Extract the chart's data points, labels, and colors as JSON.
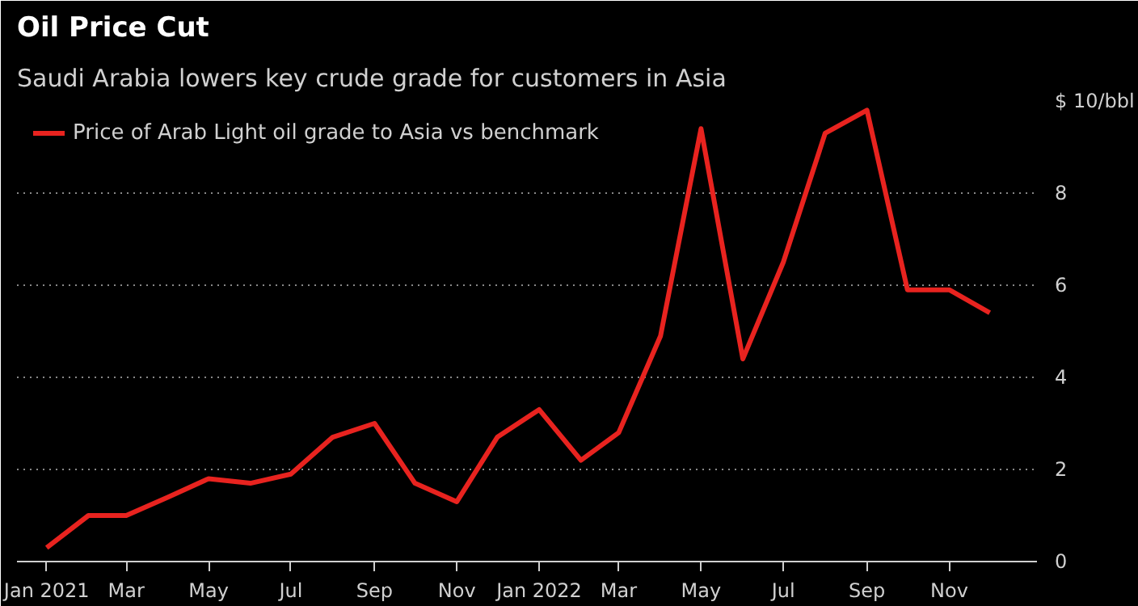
{
  "chart_data": {
    "type": "line",
    "title": "Oil Price Cut",
    "subtitle": "Saudi Arabia lowers key crude grade for customers in Asia",
    "x": [
      "2021-01",
      "2021-02",
      "2021-03",
      "2021-04",
      "2021-05",
      "2021-06",
      "2021-07",
      "2021-08",
      "2021-09",
      "2021-10",
      "2021-11",
      "2021-12",
      "2022-01",
      "2022-02",
      "2022-03",
      "2022-04",
      "2022-05",
      "2022-06",
      "2022-07",
      "2022-08",
      "2022-09",
      "2022-10",
      "2022-11",
      "2022-12"
    ],
    "series": [
      {
        "name": "Price of Arab Light oil grade to Asia vs benchmark",
        "color": "#e8231f",
        "values": [
          0.3,
          1.0,
          1.0,
          1.4,
          1.8,
          1.7,
          1.9,
          2.7,
          3.0,
          1.7,
          1.3,
          2.7,
          3.3,
          2.2,
          2.8,
          4.9,
          9.4,
          4.4,
          6.5,
          9.3,
          9.8,
          5.9,
          5.9,
          5.4
        ]
      }
    ],
    "ylim": [
      0,
      10
    ],
    "yticks": [
      0,
      2,
      4,
      6,
      8,
      {
        "value": 10,
        "label": "$ 10/bbl"
      }
    ],
    "xlim": [
      "2020-12-10",
      "2023-01-05"
    ],
    "xticks": [
      {
        "value": "2021-01",
        "label": "Jan\n2021"
      },
      {
        "value": "2021-03",
        "label": "Mar"
      },
      {
        "value": "2021-05",
        "label": "May"
      },
      {
        "value": "2021-07",
        "label": "Jul"
      },
      {
        "value": "2021-09",
        "label": "Sep"
      },
      {
        "value": "2021-11",
        "label": "Nov"
      },
      {
        "value": "2022-01",
        "label": "Jan\n2022"
      },
      {
        "value": "2022-03",
        "label": "Mar"
      },
      {
        "value": "2022-05",
        "label": "May"
      },
      {
        "value": "2022-07",
        "label": "Jul"
      },
      {
        "value": "2022-09",
        "label": "Sep"
      },
      {
        "value": "2022-11",
        "label": "Nov"
      }
    ],
    "grid": "y",
    "legend": "top left",
    "line_style": "solid"
  }
}
